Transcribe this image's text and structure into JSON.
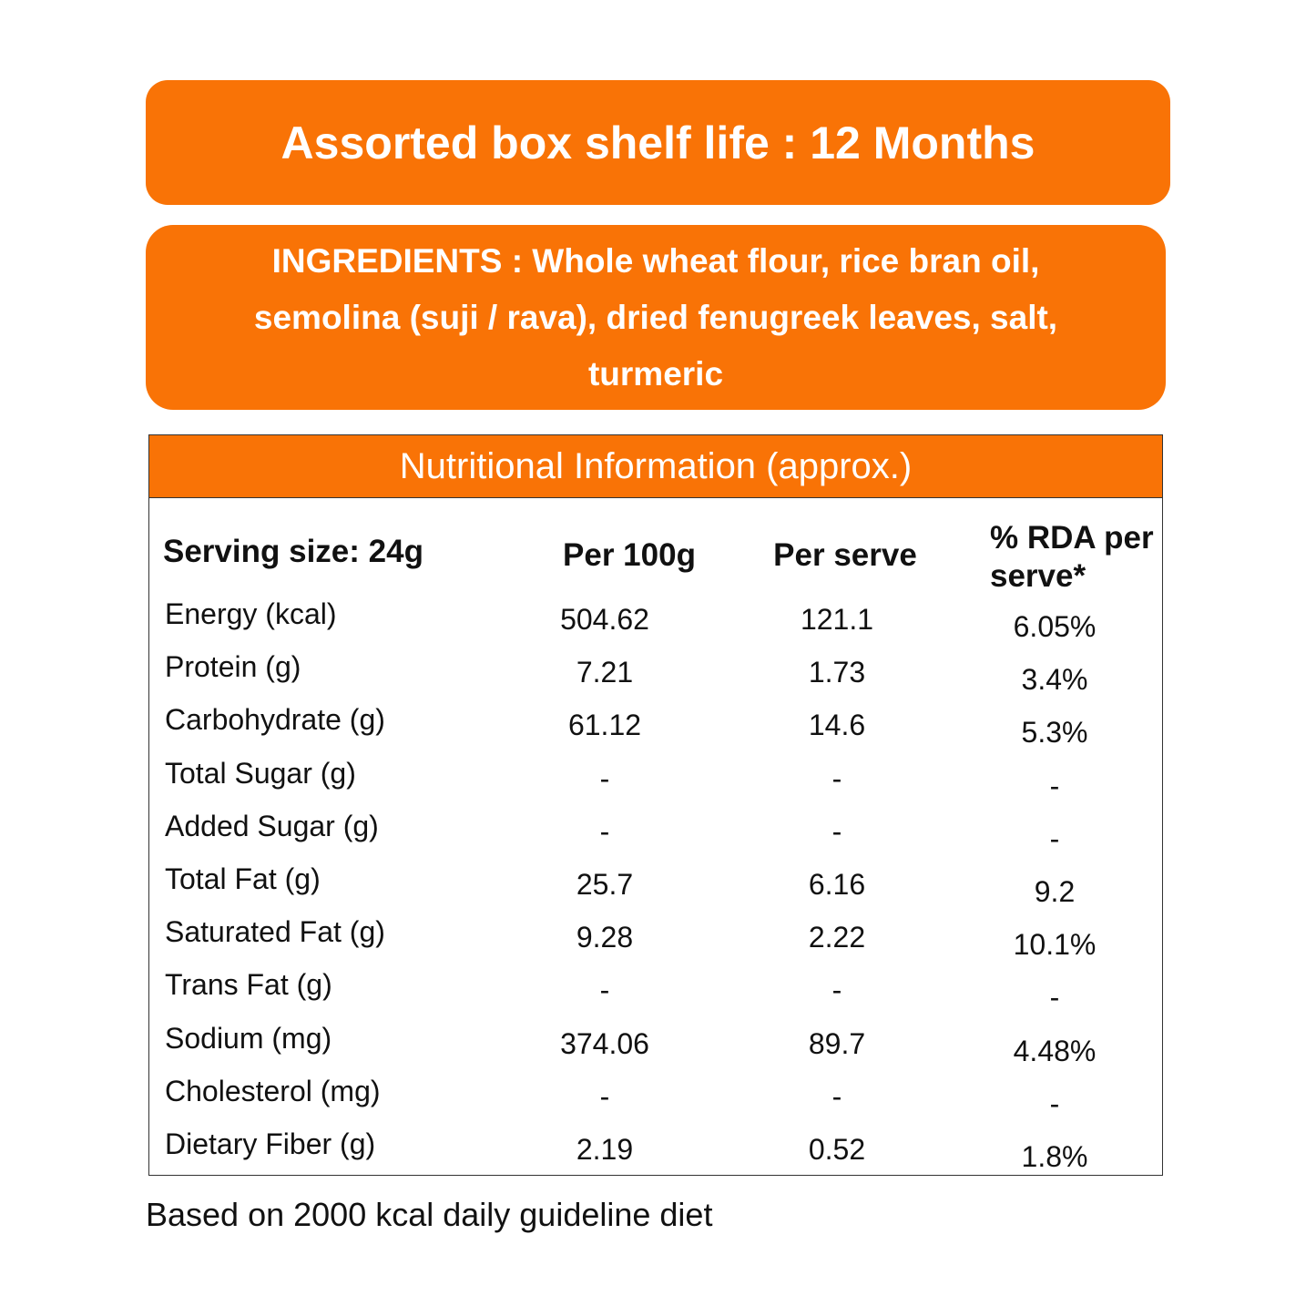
{
  "header": {
    "title": "Assorted box shelf life : 12 Months"
  },
  "ingredients": {
    "text": "INGREDIENTS : Whole wheat flour, rice bran oil, semolina (suji / rava), dried fenugreek leaves, salt, turmeric"
  },
  "table": {
    "title": "Nutritional Information (approx.)",
    "columns": [
      "Serving size: 24g",
      "Per 100g",
      "Per serve",
      "% RDA per serve*"
    ],
    "rows": [
      [
        "Energy (kcal)",
        "504.62",
        "121.1",
        "6.05%"
      ],
      [
        "Protein (g)",
        "7.21",
        "1.73",
        "3.4%"
      ],
      [
        "Carbohydrate (g)",
        "61.12",
        "14.6",
        "5.3%"
      ],
      [
        "Total Sugar (g)",
        "-",
        "-",
        "-"
      ],
      [
        "Added Sugar (g)",
        "-",
        "-",
        "-"
      ],
      [
        "Total Fat (g)",
        "25.7",
        "6.16",
        "9.2"
      ],
      [
        "Saturated Fat (g)",
        "9.28",
        "2.22",
        "10.1%"
      ],
      [
        "Trans Fat (g)",
        "-",
        "-",
        "-"
      ],
      [
        "Sodium (mg)",
        "374.06",
        "89.7",
        "4.48%"
      ],
      [
        "Cholesterol (mg)",
        "-",
        "-",
        "-"
      ],
      [
        "Dietary Fiber (g)",
        "2.19",
        "0.52",
        "1.8%"
      ]
    ]
  },
  "footer": {
    "note": "Based on 2000 kcal daily guideline diet"
  }
}
